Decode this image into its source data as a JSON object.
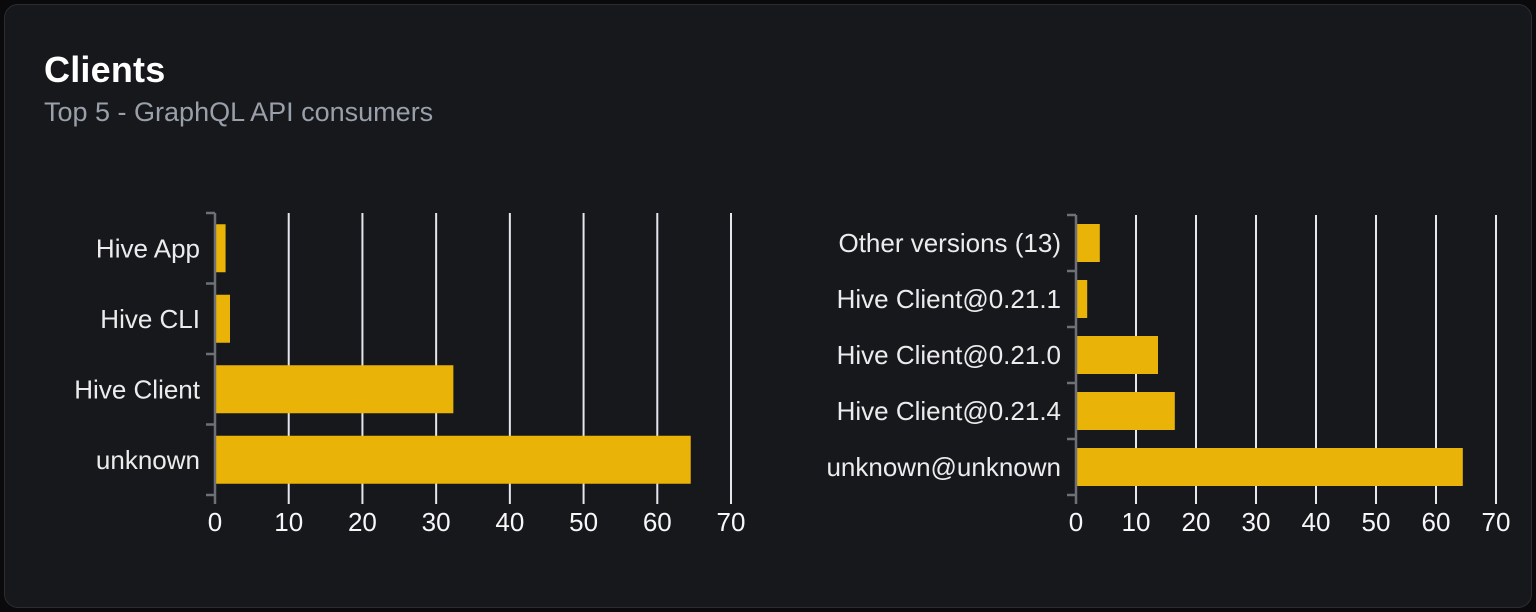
{
  "card": {
    "title": "Clients",
    "subtitle": "Top 5 - GraphQL API consumers"
  },
  "colors": {
    "bar": "#eab308",
    "grid": "#e6e6ee",
    "axis": "#6e7078",
    "category_label": "#ececec",
    "tick_label": "#f7f7f7",
    "title": "#ffffff",
    "subtitle": "#9aa0aa",
    "card_bg": "#16181c",
    "card_border": "#2b2d33",
    "page_bg": "#0a0a0c"
  },
  "chart_data": [
    {
      "type": "bar",
      "orientation": "horizontal",
      "categories": [
        "Hive App",
        "Hive CLI",
        "Hive Client",
        "unknown"
      ],
      "values": [
        1.3,
        1.9,
        32.2,
        64.4
      ],
      "x_ticks": [
        0,
        10,
        20,
        30,
        40,
        50,
        60,
        70
      ],
      "xlim": [
        0,
        70
      ],
      "grid": true,
      "legend_position": "none"
    },
    {
      "type": "bar",
      "orientation": "horizontal",
      "categories": [
        "Other versions (13)",
        "Hive Client@0.21.1",
        "Hive Client@0.21.0",
        "Hive Client@0.21.4",
        "unknown@unknown"
      ],
      "values": [
        3.8,
        1.7,
        13.5,
        16.3,
        64.3
      ],
      "x_ticks": [
        0,
        10,
        20,
        30,
        40,
        50,
        60,
        70
      ],
      "xlim": [
        0,
        70
      ],
      "grid": true,
      "legend_position": "none"
    }
  ]
}
